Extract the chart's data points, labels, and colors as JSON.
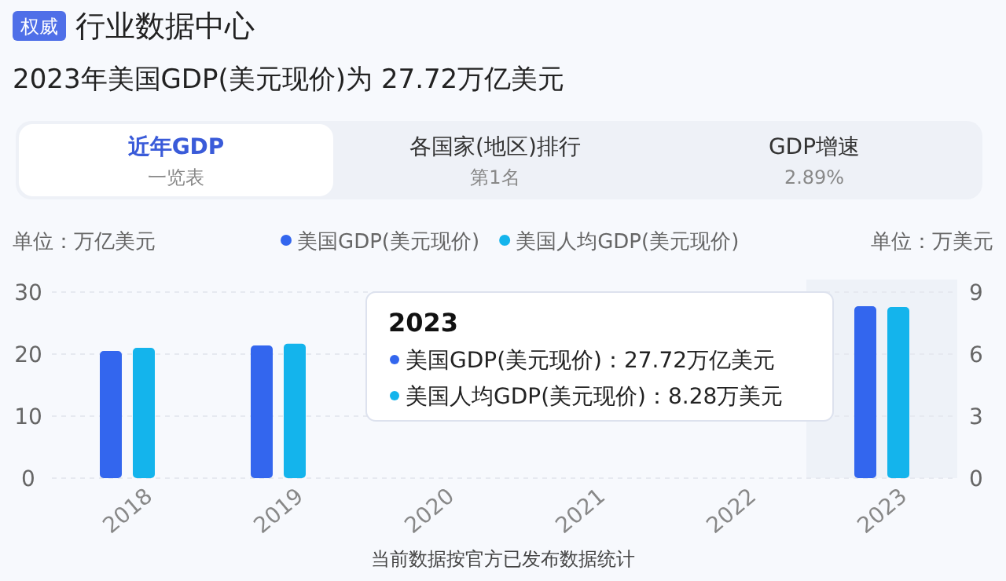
{
  "chart_data": {
    "type": "bar",
    "title": "2023年美国GDP(美元现价)为 27.72万亿美元",
    "ylabel": "单位：万亿美元",
    "y2label": "单位：万美元",
    "categories": [
      "2018",
      "2019",
      "2020",
      "2021",
      "2022",
      "2023"
    ],
    "series": [
      {
        "name": "美国GDP(美元现价)",
        "color": "#3366ee",
        "values": [
          20.5,
          21.4,
          null,
          null,
          null,
          27.72
        ]
      },
      {
        "name": "美国人均GDP(美元现价)",
        "color": "#14b4ec",
        "axis": "y2",
        "values": [
          6.3,
          6.5,
          null,
          null,
          null,
          8.28
        ]
      }
    ],
    "ylim": [
      0,
      30
    ],
    "yticks": [
      0,
      10,
      20,
      30
    ],
    "y2lim": [
      0,
      9
    ],
    "y2ticks": [
      0,
      3,
      6,
      9
    ],
    "grid": "y",
    "legend": "top",
    "bands": [
      {
        "axis": "x",
        "from": "2023",
        "to": "2023",
        "color": "#eef2f8"
      }
    ],
    "annotations": [
      "权威",
      "行业数据中心",
      "近年GDP",
      "一览表",
      "各国家(地区)排行",
      "第1名",
      "GDP增速",
      "2.89%",
      "2023",
      "美国GDP(美元现价)：27.72万亿美元",
      "美国人均GDP(美元现价)：8.28万美元",
      "当前数据按官方已发布数据统计"
    ]
  }
}
